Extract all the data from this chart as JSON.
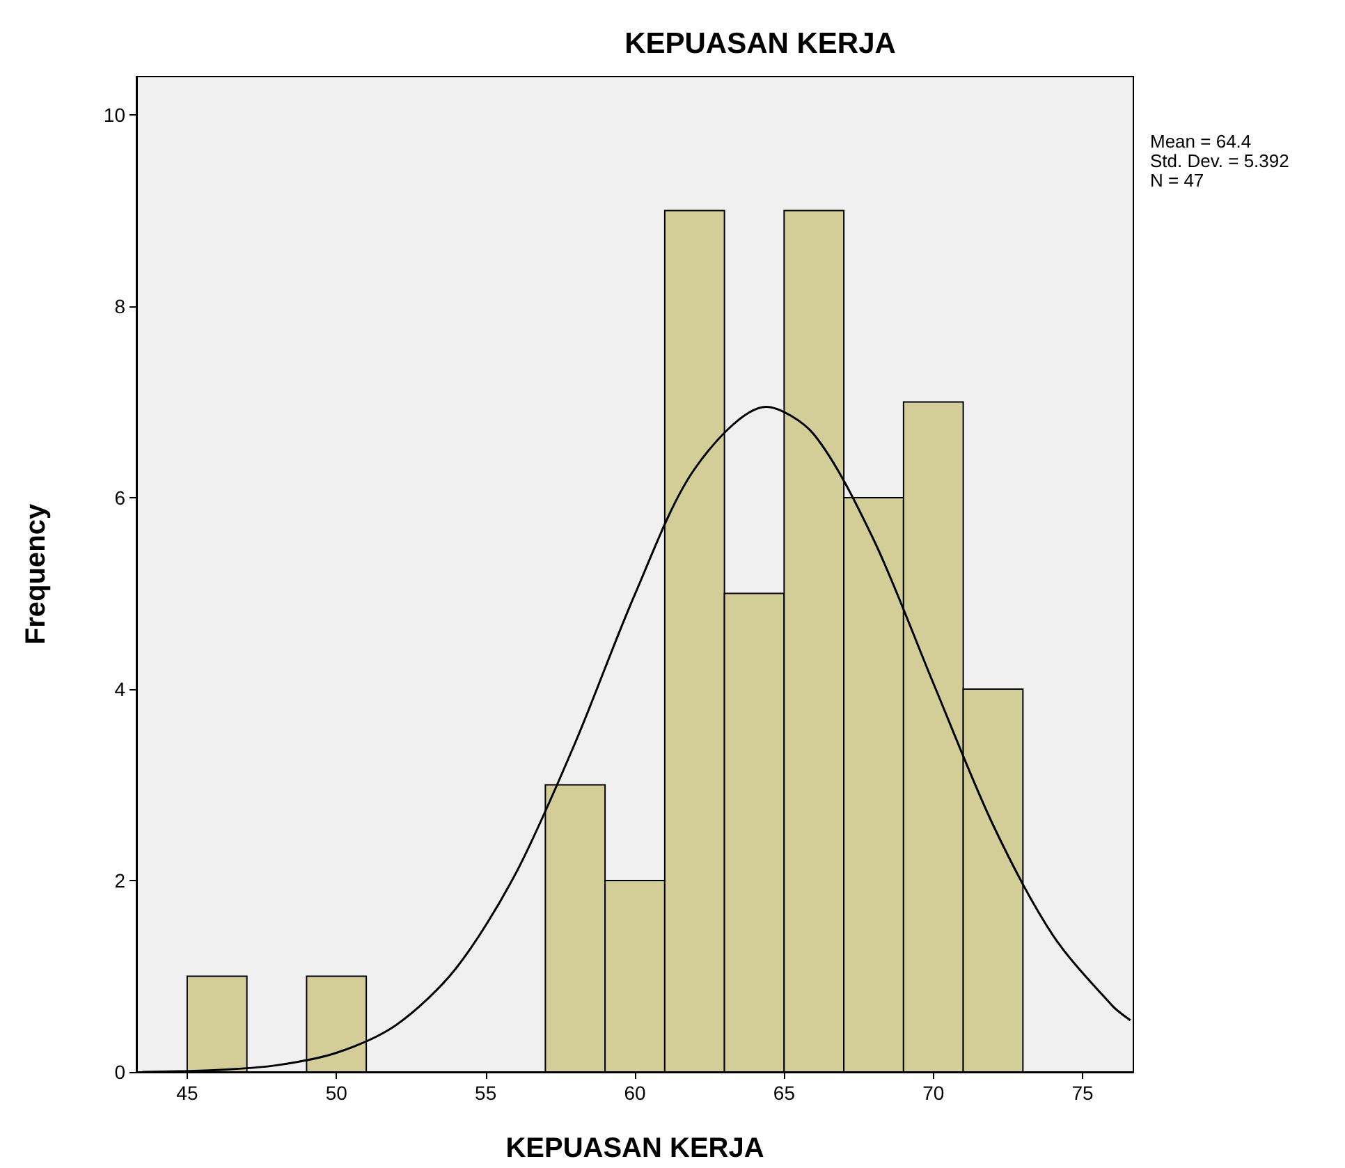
{
  "chart_data": {
    "type": "histogram",
    "title": "KEPUASAN KERJA",
    "xlabel": "KEPUASAN KERJA",
    "ylabel": "Frequency",
    "bins": [
      45,
      47,
      49,
      51,
      53,
      55,
      57,
      59,
      61,
      63,
      65,
      67,
      69,
      71,
      73
    ],
    "values": [
      1,
      0,
      1,
      0,
      0,
      0,
      3,
      2,
      9,
      5,
      9,
      6,
      7,
      4
    ],
    "color": "#d3ce97",
    "series": [
      {
        "type": "line",
        "color": "#000000",
        "x": [
          43.5,
          46,
          48,
          50,
          52,
          54,
          56,
          58,
          60,
          62,
          64.4,
          66,
          68,
          70,
          72,
          74,
          76,
          76.6
        ],
        "values": [
          0,
          0.02,
          0.07,
          0.2,
          0.49,
          1.08,
          2.07,
          3.44,
          4.99,
          6.3,
          6.95,
          6.66,
          5.56,
          4.06,
          2.58,
          1.43,
          0.69,
          0.54
        ]
      }
    ],
    "xlim": [
      43.3,
      76.7
    ],
    "xticks": [
      45,
      50,
      55,
      60,
      65,
      70,
      75
    ],
    "ylim": [
      0,
      10.4
    ],
    "yticks": [
      0,
      2,
      4,
      6,
      8,
      10
    ],
    "grid": false,
    "annotations": [
      "Mean = 64.4",
      "Std. Dev. = 5.392",
      "N = 47"
    ]
  }
}
